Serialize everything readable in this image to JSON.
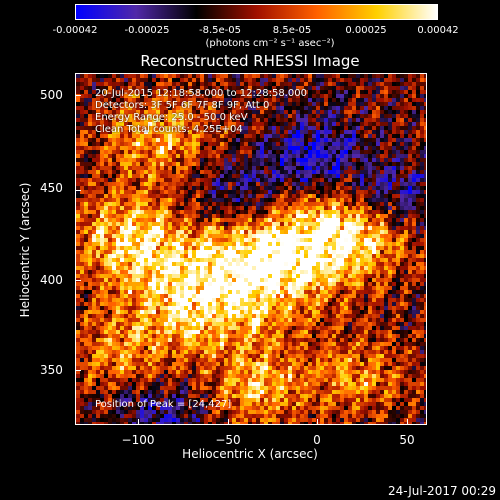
{
  "colorbar": {
    "ticks": [
      "-0.00042",
      "-0.00025",
      "-8.5e-05",
      "8.5e-05",
      "0.00025",
      "0.00042"
    ],
    "units": "(photons cm⁻² s⁻¹ asec⁻²)",
    "colors": [
      "#0000ff",
      "#5028a8",
      "#000000",
      "#a01000",
      "#ff6000",
      "#ffd000",
      "#ffffff"
    ]
  },
  "chart_data": {
    "type": "heatmap",
    "title": "Reconstructed RHESSI Image",
    "xlabel": "Heliocentric X (arcsec)",
    "ylabel": "Heliocentric Y (arcsec)",
    "x_ticks": [
      "−100",
      "−50",
      "0",
      "50"
    ],
    "y_ticks": [
      "350",
      "400",
      "450",
      "500"
    ],
    "xlim": [
      -135,
      60
    ],
    "ylim": [
      317,
      515
    ],
    "value_range": [
      -0.00042,
      0.00042
    ],
    "annotations": [
      "20-Jul-2015 12:18:58.000 to 12:28:58.000",
      "Detectors: 3F 5F 6F 7F 8F 9F, Att 0",
      "Energy Range: 25.0 - 50.0 keV",
      "Clean     Total counts: 4.25E+04"
    ],
    "peak_label": "Position of Peak = [24,427]"
  },
  "footer": {
    "datestamp": "24-Jul-2017 00:29"
  }
}
